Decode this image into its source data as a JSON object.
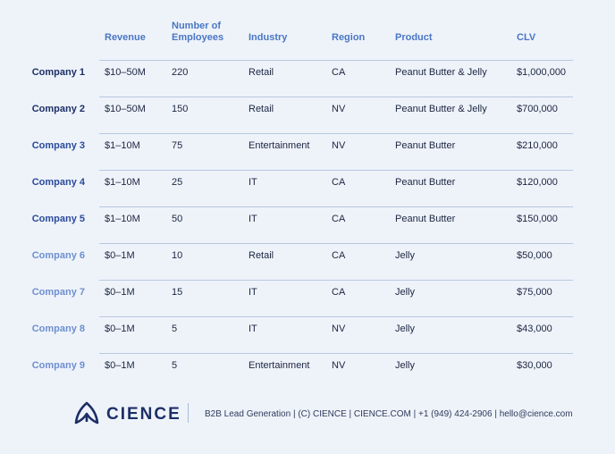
{
  "columns": {
    "revenue": "Revenue",
    "employees_line1": "Number of",
    "employees_line2": "Employees",
    "industry": "Industry",
    "region": "Region",
    "product": "Product",
    "clv": "CLV"
  },
  "rows": [
    {
      "company": "Company 1",
      "revenue": "$10–50M",
      "employees": "220",
      "industry": "Retail",
      "region": "CA",
      "product": "Peanut Butter & Jelly",
      "clv": "$1,000,000",
      "color": "#1d2f66"
    },
    {
      "company": "Company 2",
      "revenue": "$10–50M",
      "employees": "150",
      "industry": "Retail",
      "region": "NV",
      "product": "Peanut Butter & Jelly",
      "clv": "$700,000",
      "color": "#1d2f66"
    },
    {
      "company": "Company 3",
      "revenue": "$1–10M",
      "employees": "75",
      "industry": "Entertainment",
      "region": "NV",
      "product": "Peanut Butter",
      "clv": "$210,000",
      "color": "#2b4a9c"
    },
    {
      "company": "Company 4",
      "revenue": "$1–10M",
      "employees": "25",
      "industry": "IT",
      "region": "CA",
      "product": "Peanut Butter",
      "clv": "$120,000",
      "color": "#2b4a9c"
    },
    {
      "company": "Company 5",
      "revenue": "$1–10M",
      "employees": "50",
      "industry": "IT",
      "region": "CA",
      "product": "Peanut Butter",
      "clv": "$150,000",
      "color": "#2b4a9c"
    },
    {
      "company": "Company 6",
      "revenue": "$0–1M",
      "employees": "10",
      "industry": "Retail",
      "region": "CA",
      "product": "Jelly",
      "clv": "$50,000",
      "color": "#6e8fcf"
    },
    {
      "company": "Company 7",
      "revenue": "$0–1M",
      "employees": "15",
      "industry": "IT",
      "region": "CA",
      "product": "Jelly",
      "clv": "$75,000",
      "color": "#6e8fcf"
    },
    {
      "company": "Company 8",
      "revenue": "$0–1M",
      "employees": "5",
      "industry": "IT",
      "region": "NV",
      "product": "Jelly",
      "clv": "$43,000",
      "color": "#6e8fcf"
    },
    {
      "company": "Company 9",
      "revenue": "$0–1M",
      "employees": "5",
      "industry": "Entertainment",
      "region": "NV",
      "product": "Jelly",
      "clv": "$30,000",
      "color": "#6e8fcf"
    }
  ],
  "footer": {
    "brand": "CIENCE",
    "logo_icon": "cience-leaf-icon",
    "text": "B2B Lead Generation | (C) CIENCE | CIENCE.COM | +1 (949) 424-2906 | hello@cience.com"
  }
}
